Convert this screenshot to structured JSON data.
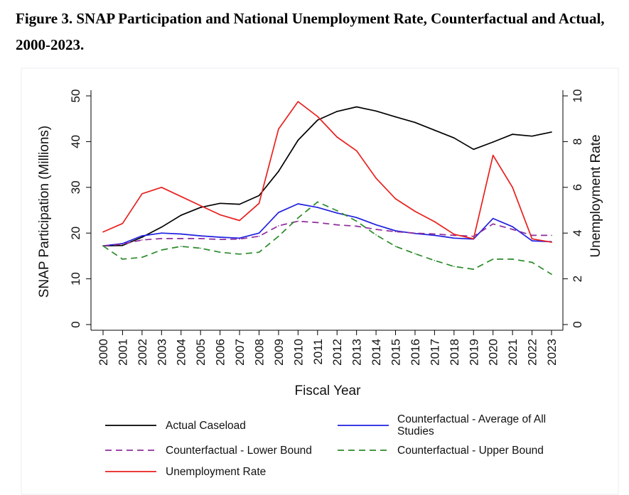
{
  "figure": {
    "title": "Figure 3. SNAP Participation and National Unemployment Rate, Counterfactual and Actual, 2000-2023."
  },
  "chart_data": {
    "type": "line",
    "title": "Figure 3. SNAP Participation and National Unemployment Rate, Counterfactual and Actual, 2000-2023.",
    "xlabel": "Fiscal Year",
    "ylabel": "SNAP Participation (Millions)",
    "y2label": "Unemployment Rate",
    "ylim": [
      0,
      50
    ],
    "y2lim": [
      0,
      10
    ],
    "yticks": [
      "0",
      "10",
      "20",
      "30",
      "40",
      "50"
    ],
    "y2ticks": [
      "0",
      "2",
      "4",
      "6",
      "8",
      "10"
    ],
    "categories": [
      "2000",
      "2001",
      "2002",
      "2003",
      "2004",
      "2005",
      "2006",
      "2007",
      "2008",
      "2009",
      "2010",
      "2011",
      "2012",
      "2013",
      "2014",
      "2015",
      "2016",
      "2017",
      "2018",
      "2019",
      "2020",
      "2021",
      "2022",
      "2023"
    ],
    "legend_position": "bottom",
    "series": [
      {
        "name": "Actual Caseload",
        "axis": "left",
        "color": "#000000",
        "dash": "solid",
        "values": [
          17.2,
          17.3,
          19.1,
          21.3,
          23.9,
          25.6,
          26.5,
          26.3,
          28.2,
          33.5,
          40.3,
          44.7,
          46.6,
          47.6,
          46.7,
          45.4,
          44.2,
          42.5,
          40.8,
          38.3,
          39.9,
          41.6,
          41.2,
          42.1
        ]
      },
      {
        "name": "Counterfactual - Average of All Studies",
        "axis": "left",
        "color": "#1f1fe0",
        "dash": "solid",
        "values": [
          17.2,
          17.7,
          19.4,
          20.0,
          19.8,
          19.4,
          19.1,
          18.9,
          20.0,
          24.5,
          26.4,
          25.6,
          24.4,
          23.4,
          21.8,
          20.5,
          19.9,
          19.5,
          18.9,
          18.7,
          23.2,
          21.4,
          18.3,
          18.1
        ]
      },
      {
        "name": "Counterfactual - Lower Bound",
        "axis": "left",
        "color": "#8e2c9c",
        "dash": "dashed",
        "values": [
          17.2,
          17.6,
          18.5,
          18.8,
          18.8,
          18.8,
          18.6,
          18.7,
          19.3,
          21.6,
          22.6,
          22.3,
          21.8,
          21.5,
          20.8,
          20.3,
          20.0,
          19.8,
          19.5,
          19.3,
          22.0,
          20.8,
          19.5,
          19.5
        ]
      },
      {
        "name": "Counterfactual - Upper Bound",
        "axis": "left",
        "color": "#2a8a2a",
        "dash": "dashed",
        "values": [
          17.2,
          14.3,
          14.7,
          16.3,
          17.1,
          16.7,
          15.8,
          15.4,
          15.8,
          19.3,
          23.3,
          26.8,
          24.9,
          22.6,
          19.6,
          17.1,
          15.5,
          14.0,
          12.7,
          12.1,
          14.3,
          14.3,
          13.6,
          11.0
        ]
      },
      {
        "name": "Unemployment Rate",
        "axis": "right",
        "color": "#e8201e",
        "dash": "solid",
        "values": [
          4.05,
          4.42,
          5.72,
          6.0,
          5.6,
          5.2,
          4.8,
          4.55,
          5.3,
          8.55,
          9.75,
          9.1,
          8.2,
          7.6,
          6.4,
          5.5,
          4.95,
          4.5,
          3.95,
          3.75,
          7.4,
          6.0,
          3.75,
          3.6
        ]
      }
    ]
  }
}
